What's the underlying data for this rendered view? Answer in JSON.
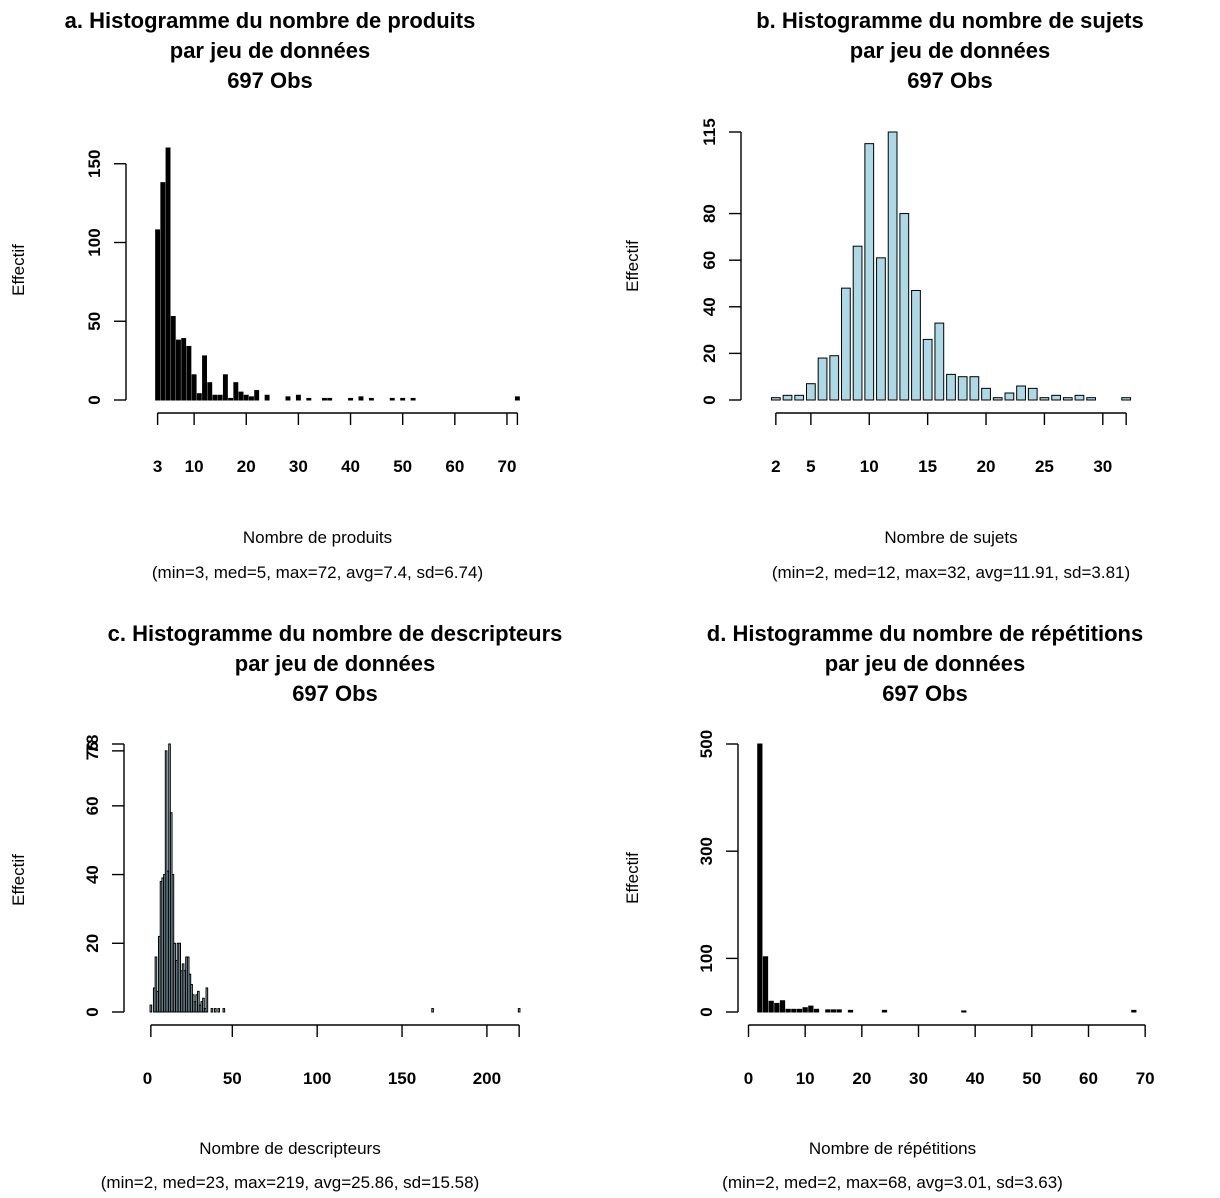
{
  "chart_data": [
    {
      "type": "bar",
      "panel": "a",
      "title": [
        "a. Histogramme du nombre de produits",
        "par jeu de données",
        "697 Obs"
      ],
      "xlabel": "Nombre de produits",
      "stats_label": "(min=3, med=5, max=72, avg=7.4, sd=6.74)",
      "ylabel": "Effectif",
      "bar_color": "#000000",
      "xlim": [
        2.5,
        72.5
      ],
      "ylim": [
        0,
        160
      ],
      "x_ticks": [
        3,
        10,
        20,
        30,
        40,
        50,
        60,
        70
      ],
      "y_ticks": [
        0,
        50,
        100,
        150
      ],
      "x_line_ticks": [
        3,
        10,
        20,
        30,
        40,
        50,
        60,
        70,
        72
      ],
      "bars": [
        {
          "x": 3,
          "y": 108
        },
        {
          "x": 4,
          "y": 138
        },
        {
          "x": 5,
          "y": 160
        },
        {
          "x": 6,
          "y": 53
        },
        {
          "x": 7,
          "y": 38
        },
        {
          "x": 8,
          "y": 39
        },
        {
          "x": 9,
          "y": 34
        },
        {
          "x": 10,
          "y": 16
        },
        {
          "x": 11,
          "y": 4
        },
        {
          "x": 12,
          "y": 28
        },
        {
          "x": 13,
          "y": 11
        },
        {
          "x": 14,
          "y": 3
        },
        {
          "x": 15,
          "y": 3
        },
        {
          "x": 16,
          "y": 16
        },
        {
          "x": 17,
          "y": 1
        },
        {
          "x": 18,
          "y": 11
        },
        {
          "x": 19,
          "y": 5
        },
        {
          "x": 20,
          "y": 3
        },
        {
          "x": 21,
          "y": 2
        },
        {
          "x": 22,
          "y": 6
        },
        {
          "x": 24,
          "y": 3
        },
        {
          "x": 28,
          "y": 2
        },
        {
          "x": 30,
          "y": 3
        },
        {
          "x": 32,
          "y": 1
        },
        {
          "x": 35,
          "y": 1
        },
        {
          "x": 36,
          "y": 1
        },
        {
          "x": 40,
          "y": 1
        },
        {
          "x": 42,
          "y": 2
        },
        {
          "x": 44,
          "y": 1
        },
        {
          "x": 48,
          "y": 1
        },
        {
          "x": 50,
          "y": 1
        },
        {
          "x": 52,
          "y": 1
        },
        {
          "x": 72,
          "y": 2
        }
      ]
    },
    {
      "type": "bar",
      "panel": "b",
      "title": [
        "b. Histogramme du nombre de sujets",
        "par jeu de données",
        "697 Obs"
      ],
      "xlabel": "Nombre de sujets",
      "stats_label": "(min=2, med=12, max=32, avg=11.91, sd=3.81)",
      "ylabel": "Effectif",
      "bar_color": "#add8e6",
      "xlim": [
        1.5,
        32.5
      ],
      "ylim": [
        0,
        115
      ],
      "x_ticks": [
        2,
        5,
        10,
        15,
        20,
        25,
        30
      ],
      "y_ticks": [
        0,
        20,
        40,
        60,
        80,
        115
      ],
      "x_line_ticks": [
        2,
        5,
        10,
        15,
        20,
        25,
        30,
        32
      ],
      "bars": [
        {
          "x": 2,
          "y": 1
        },
        {
          "x": 3,
          "y": 2
        },
        {
          "x": 4,
          "y": 2
        },
        {
          "x": 5,
          "y": 7
        },
        {
          "x": 6,
          "y": 18
        },
        {
          "x": 7,
          "y": 19
        },
        {
          "x": 8,
          "y": 48
        },
        {
          "x": 9,
          "y": 66
        },
        {
          "x": 10,
          "y": 110
        },
        {
          "x": 11,
          "y": 61
        },
        {
          "x": 12,
          "y": 115
        },
        {
          "x": 13,
          "y": 80
        },
        {
          "x": 14,
          "y": 47
        },
        {
          "x": 15,
          "y": 26
        },
        {
          "x": 16,
          "y": 33
        },
        {
          "x": 17,
          "y": 11
        },
        {
          "x": 18,
          "y": 10
        },
        {
          "x": 19,
          "y": 10
        },
        {
          "x": 20,
          "y": 5
        },
        {
          "x": 21,
          "y": 1
        },
        {
          "x": 22,
          "y": 3
        },
        {
          "x": 23,
          "y": 6
        },
        {
          "x": 24,
          "y": 5
        },
        {
          "x": 25,
          "y": 1
        },
        {
          "x": 26,
          "y": 2
        },
        {
          "x": 27,
          "y": 1
        },
        {
          "x": 28,
          "y": 2
        },
        {
          "x": 29,
          "y": 1
        },
        {
          "x": 32,
          "y": 1
        }
      ]
    },
    {
      "type": "bar",
      "panel": "c",
      "title": [
        "c. Histogramme du nombre de descripteurs",
        "par jeu de données",
        "697 Obs"
      ],
      "xlabel": "Nombre de descripteurs",
      "stats_label": "(min=2, med=23, max=219, avg=25.86, sd=15.58)",
      "ylabel": "Effectif",
      "bar_color": "#add8e6",
      "xlim": [
        1.5,
        219.5
      ],
      "ylim": [
        0,
        78
      ],
      "x_ticks": [
        0,
        50,
        100,
        150,
        200
      ],
      "y_ticks": [
        0,
        20,
        40,
        60,
        76,
        78
      ],
      "y_tick_labels": [
        "0",
        "20",
        "40",
        "60",
        "76",
        "78"
      ],
      "x_line_ticks": [
        2,
        50,
        100,
        150,
        200,
        219
      ],
      "bars": [
        {
          "x": 2,
          "y": 2
        },
        {
          "x": 4,
          "y": 7
        },
        {
          "x": 5,
          "y": 16
        },
        {
          "x": 6,
          "y": 6
        },
        {
          "x": 7,
          "y": 22
        },
        {
          "x": 8,
          "y": 38
        },
        {
          "x": 9,
          "y": 39
        },
        {
          "x": 10,
          "y": 40
        },
        {
          "x": 11,
          "y": 76
        },
        {
          "x": 12,
          "y": 41
        },
        {
          "x": 13,
          "y": 78
        },
        {
          "x": 14,
          "y": 58
        },
        {
          "x": 15,
          "y": 40
        },
        {
          "x": 16,
          "y": 20
        },
        {
          "x": 17,
          "y": 15
        },
        {
          "x": 18,
          "y": 20
        },
        {
          "x": 19,
          "y": 20
        },
        {
          "x": 20,
          "y": 12
        },
        {
          "x": 21,
          "y": 14
        },
        {
          "x": 22,
          "y": 12
        },
        {
          "x": 23,
          "y": 16
        },
        {
          "x": 24,
          "y": 16
        },
        {
          "x": 25,
          "y": 11
        },
        {
          "x": 26,
          "y": 8
        },
        {
          "x": 27,
          "y": 5
        },
        {
          "x": 28,
          "y": 3
        },
        {
          "x": 29,
          "y": 5
        },
        {
          "x": 30,
          "y": 6
        },
        {
          "x": 31,
          "y": 2
        },
        {
          "x": 32,
          "y": 3
        },
        {
          "x": 33,
          "y": 4
        },
        {
          "x": 34,
          "y": 1
        },
        {
          "x": 35,
          "y": 7
        },
        {
          "x": 38,
          "y": 1
        },
        {
          "x": 40,
          "y": 1
        },
        {
          "x": 42,
          "y": 1
        },
        {
          "x": 45,
          "y": 1
        },
        {
          "x": 168,
          "y": 1
        },
        {
          "x": 219,
          "y": 1
        }
      ]
    },
    {
      "type": "bar",
      "panel": "d",
      "title": [
        "d. Histogramme du nombre de répétitions",
        "par jeu de données",
        "697 Obs"
      ],
      "xlabel": "Nombre de répétitions",
      "stats_label": "(min=2, med=2, max=68, avg=3.01, sd=3.63)",
      "ylabel": "Effectif",
      "bar_color": "#000000",
      "xlim": [
        1.5,
        70.5
      ],
      "ylim": [
        0,
        500
      ],
      "x_ticks": [
        0,
        10,
        20,
        30,
        40,
        50,
        60,
        70
      ],
      "y_ticks": [
        0,
        100,
        300,
        500
      ],
      "x_line_ticks": [
        0,
        10,
        20,
        30,
        40,
        50,
        60,
        70
      ],
      "bars": [
        {
          "x": 2,
          "y": 500
        },
        {
          "x": 3,
          "y": 103
        },
        {
          "x": 4,
          "y": 20
        },
        {
          "x": 5,
          "y": 16
        },
        {
          "x": 6,
          "y": 21
        },
        {
          "x": 7,
          "y": 5
        },
        {
          "x": 8,
          "y": 5
        },
        {
          "x": 9,
          "y": 5
        },
        {
          "x": 10,
          "y": 8
        },
        {
          "x": 11,
          "y": 11
        },
        {
          "x": 12,
          "y": 5
        },
        {
          "x": 14,
          "y": 4
        },
        {
          "x": 15,
          "y": 4
        },
        {
          "x": 16,
          "y": 4
        },
        {
          "x": 18,
          "y": 3
        },
        {
          "x": 24,
          "y": 3
        },
        {
          "x": 38,
          "y": 2
        },
        {
          "x": 68,
          "y": 3
        }
      ]
    }
  ]
}
